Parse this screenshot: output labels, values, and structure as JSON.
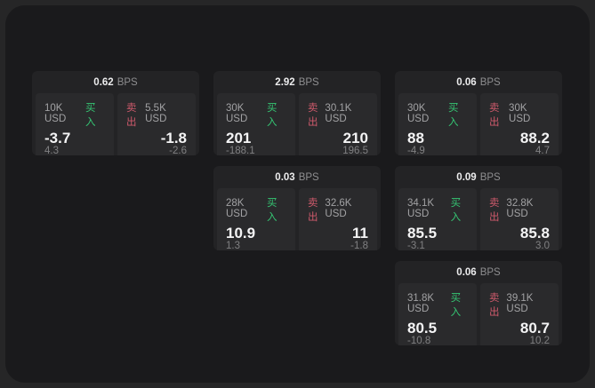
{
  "labels": {
    "bps_unit": "BPS",
    "buy": "买入",
    "sell": "卖出"
  },
  "colors": {
    "buy": "#35c573",
    "sell": "#cf5a6c",
    "surface": "#1a1a1c",
    "card": "#232325",
    "panel": "#2a2a2c"
  },
  "cards": [
    {
      "bps": "0.62",
      "buy": {
        "amount": "10K USD",
        "price": "-3.7",
        "delta": "4.3"
      },
      "sell": {
        "amount": "5.5K USD",
        "price": "-1.8",
        "delta": "-2.6"
      }
    },
    {
      "bps": "2.92",
      "buy": {
        "amount": "30K USD",
        "price": "201",
        "delta": "-188.1"
      },
      "sell": {
        "amount": "30.1K USD",
        "price": "210",
        "delta": "196.5"
      }
    },
    {
      "bps": "0.06",
      "buy": {
        "amount": "30K USD",
        "price": "88",
        "delta": "-4.9"
      },
      "sell": {
        "amount": "30K USD",
        "price": "88.2",
        "delta": "4.7"
      }
    },
    {
      "bps": "0.03",
      "buy": {
        "amount": "28K USD",
        "price": "10.9",
        "delta": "1.3"
      },
      "sell": {
        "amount": "32.6K USD",
        "price": "11",
        "delta": "-1.8"
      }
    },
    {
      "bps": "0.09",
      "buy": {
        "amount": "34.1K USD",
        "price": "85.5",
        "delta": "-3.1"
      },
      "sell": {
        "amount": "32.8K USD",
        "price": "85.8",
        "delta": "3.0"
      }
    },
    {
      "bps": "0.06",
      "buy": {
        "amount": "31.8K USD",
        "price": "80.5",
        "delta": "-10.8"
      },
      "sell": {
        "amount": "39.1K USD",
        "price": "80.7",
        "delta": "10.2"
      }
    }
  ]
}
